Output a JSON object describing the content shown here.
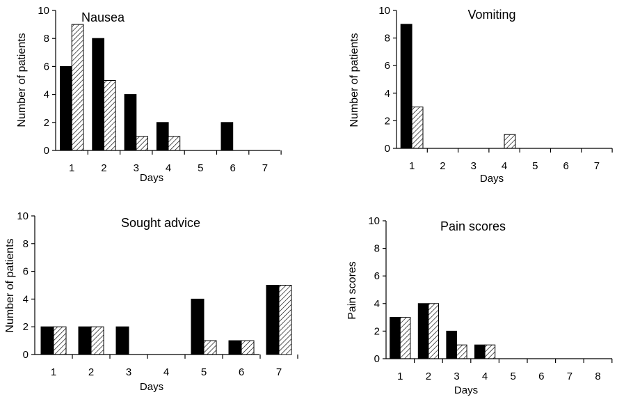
{
  "chart_data": [
    {
      "type": "bar",
      "title": "Nausea",
      "xlabel": "Days",
      "ylabel": "Number of patients",
      "categories": [
        "1",
        "2",
        "3",
        "4",
        "5",
        "6",
        "7"
      ],
      "ylim": [
        0,
        10
      ],
      "yticks": [
        "0",
        "2",
        "4",
        "6",
        "8",
        "10"
      ],
      "series": [
        {
          "values": [
            6,
            8,
            4,
            2,
            0,
            2,
            0
          ],
          "fill": "solid"
        },
        {
          "values": [
            9,
            5,
            1,
            1,
            0,
            0,
            0
          ],
          "fill": "hatched"
        }
      ],
      "grid": false,
      "legend": "none"
    },
    {
      "type": "bar",
      "title": "Vomiting",
      "xlabel": "Days",
      "ylabel": "Number of patients",
      "categories": [
        "1",
        "2",
        "3",
        "4",
        "5",
        "6",
        "7"
      ],
      "ylim": [
        0,
        10
      ],
      "yticks": [
        "0",
        "2",
        "4",
        "6",
        "8",
        "10"
      ],
      "series": [
        {
          "values": [
            9,
            0,
            0,
            0,
            0,
            0,
            0
          ],
          "fill": "solid"
        },
        {
          "values": [
            3,
            0,
            0,
            1,
            0,
            0,
            0
          ],
          "fill": "hatched"
        }
      ],
      "grid": false,
      "legend": "none"
    },
    {
      "type": "bar",
      "title": "Sought advice",
      "xlabel": "Days",
      "ylabel": "Number of patients",
      "categories": [
        "1",
        "2",
        "3",
        "4",
        "5",
        "6",
        "7"
      ],
      "ylim": [
        0,
        10
      ],
      "yticks": [
        "0",
        "2",
        "4",
        "6",
        "8",
        "10"
      ],
      "series": [
        {
          "values": [
            2,
            2,
            2,
            0,
            4,
            1,
            5
          ],
          "fill": "solid"
        },
        {
          "values": [
            2,
            2,
            0,
            0,
            1,
            1,
            5
          ],
          "fill": "hatched"
        }
      ],
      "grid": false,
      "legend": "none"
    },
    {
      "type": "bar",
      "title": "Pain scores",
      "xlabel": "Days",
      "ylabel": "Pain scores",
      "categories": [
        "1",
        "2",
        "3",
        "4",
        "5",
        "6",
        "7",
        "8"
      ],
      "ylim": [
        0,
        10
      ],
      "yticks": [
        "0",
        "2",
        "4",
        "6",
        "8",
        "10"
      ],
      "series": [
        {
          "values": [
            3,
            4,
            2,
            1,
            0,
            0,
            0,
            0
          ],
          "fill": "solid"
        },
        {
          "values": [
            3,
            4,
            1,
            1,
            0,
            0,
            0,
            0
          ],
          "fill": "hatched"
        }
      ],
      "grid": false,
      "legend": "none"
    }
  ]
}
